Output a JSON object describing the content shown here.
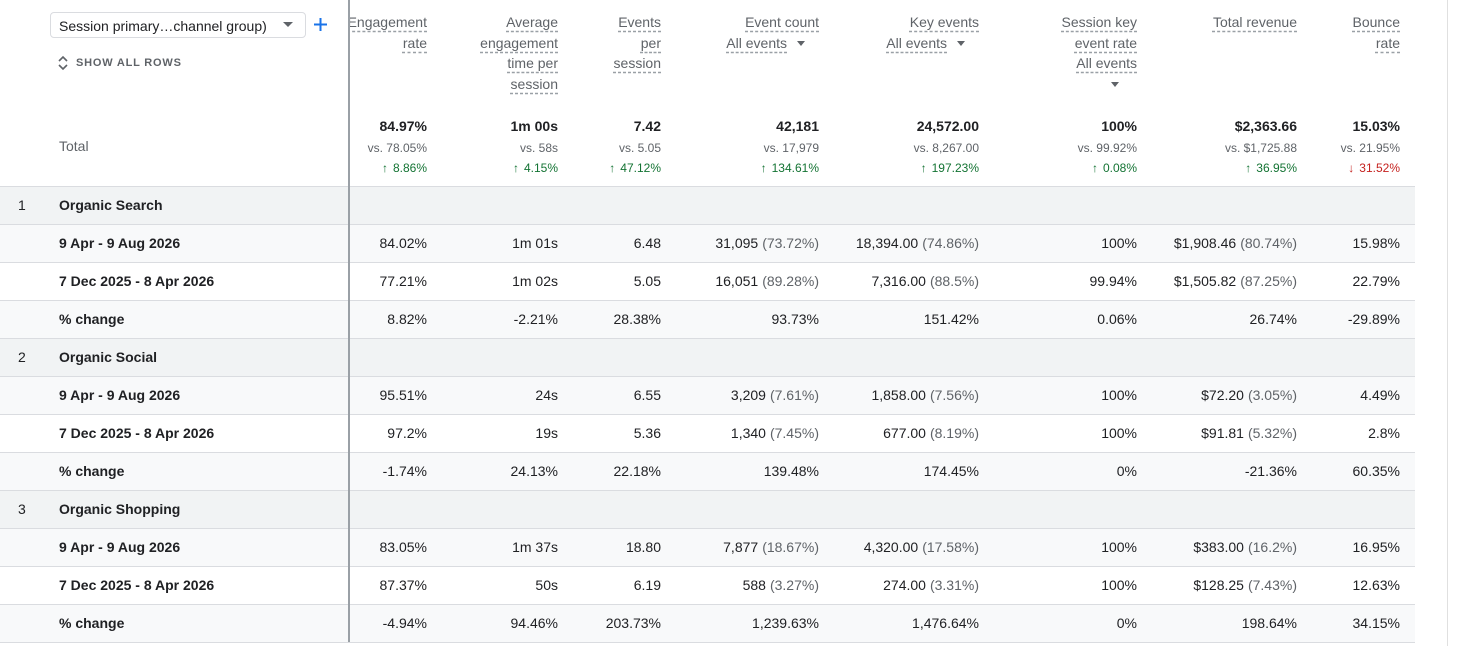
{
  "toolbar": {
    "dimension": "Session primary…channel group)",
    "show_all": "SHOW ALL ROWS"
  },
  "columns": [
    {
      "label": "Engagement rate"
    },
    {
      "label": "Average engagement time per session"
    },
    {
      "label": "Events per session"
    },
    {
      "label": "Event count",
      "filter": "All events"
    },
    {
      "label": "Key events",
      "filter": "All events"
    },
    {
      "label": "Session key event rate",
      "filter": "All events"
    },
    {
      "label": "Total revenue"
    },
    {
      "label": "Bounce rate"
    }
  ],
  "total": {
    "label": "Total",
    "cells": [
      {
        "value": "84.97%",
        "vs": "vs. 78.05%",
        "change": "8.86%",
        "direction": "up"
      },
      {
        "value": "1m 00s",
        "vs": "vs. 58s",
        "change": "4.15%",
        "direction": "up"
      },
      {
        "value": "7.42",
        "vs": "vs. 5.05",
        "change": "47.12%",
        "direction": "up"
      },
      {
        "value": "42,181",
        "vs": "vs. 17,979",
        "change": "134.61%",
        "direction": "up"
      },
      {
        "value": "24,572.00",
        "vs": "vs. 8,267.00",
        "change": "197.23%",
        "direction": "up"
      },
      {
        "value": "100%",
        "vs": "vs. 99.92%",
        "change": "0.08%",
        "direction": "up"
      },
      {
        "value": "$2,363.66",
        "vs": "vs. $1,725.88",
        "change": "36.95%",
        "direction": "up"
      },
      {
        "value": "15.03%",
        "vs": "vs. 21.95%",
        "change": "31.52%",
        "direction": "down"
      }
    ]
  },
  "groups": [
    {
      "index": "1",
      "name": "Organic Search",
      "rows": [
        {
          "label": "9 Apr - 9 Aug 2026",
          "cells": [
            "84.02%",
            "1m 01s",
            "6.48",
            [
              "31,095",
              "(73.72%)"
            ],
            [
              "18,394.00",
              "(74.86%)"
            ],
            "100%",
            [
              "$1,908.46",
              "(80.74%)"
            ],
            "15.98%"
          ]
        },
        {
          "label": "7 Dec 2025 - 8 Apr 2026",
          "cells": [
            "77.21%",
            "1m 02s",
            "5.05",
            [
              "16,051",
              "(89.28%)"
            ],
            [
              "7,316.00",
              "(88.5%)"
            ],
            "99.94%",
            [
              "$1,505.82",
              "(87.25%)"
            ],
            "22.79%"
          ]
        },
        {
          "label": "% change",
          "cells": [
            "8.82%",
            "-2.21%",
            "28.38%",
            "93.73%",
            "151.42%",
            "0.06%",
            "26.74%",
            "-29.89%"
          ]
        }
      ]
    },
    {
      "index": "2",
      "name": "Organic Social",
      "rows": [
        {
          "label": "9 Apr - 9 Aug 2026",
          "cells": [
            "95.51%",
            "24s",
            "6.55",
            [
              "3,209",
              "(7.61%)"
            ],
            [
              "1,858.00",
              "(7.56%)"
            ],
            "100%",
            [
              "$72.20",
              "(3.05%)"
            ],
            "4.49%"
          ]
        },
        {
          "label": "7 Dec 2025 - 8 Apr 2026",
          "cells": [
            "97.2%",
            "19s",
            "5.36",
            [
              "1,340",
              "(7.45%)"
            ],
            [
              "677.00",
              "(8.19%)"
            ],
            "100%",
            [
              "$91.81",
              "(5.32%)"
            ],
            "2.8%"
          ]
        },
        {
          "label": "% change",
          "cells": [
            "-1.74%",
            "24.13%",
            "22.18%",
            "139.48%",
            "174.45%",
            "0%",
            "-21.36%",
            "60.35%"
          ]
        }
      ]
    },
    {
      "index": "3",
      "name": "Organic Shopping",
      "rows": [
        {
          "label": "9 Apr - 9 Aug 2026",
          "cells": [
            "83.05%",
            "1m 37s",
            "18.80",
            [
              "7,877",
              "(18.67%)"
            ],
            [
              "4,320.00",
              "(17.58%)"
            ],
            "100%",
            [
              "$383.00",
              "(16.2%)"
            ],
            "16.95%"
          ]
        },
        {
          "label": "7 Dec 2025 - 8 Apr 2026",
          "cells": [
            "87.37%",
            "50s",
            "6.19",
            [
              "588",
              "(3.27%)"
            ],
            [
              "274.00",
              "(3.31%)"
            ],
            "100%",
            [
              "$128.25",
              "(7.43%)"
            ],
            "12.63%"
          ]
        },
        {
          "label": "% change",
          "cells": [
            "-4.94%",
            "94.46%",
            "203.73%",
            "1,239.63%",
            "1,476.64%",
            "0%",
            "198.64%",
            "34.15%"
          ]
        }
      ]
    }
  ]
}
